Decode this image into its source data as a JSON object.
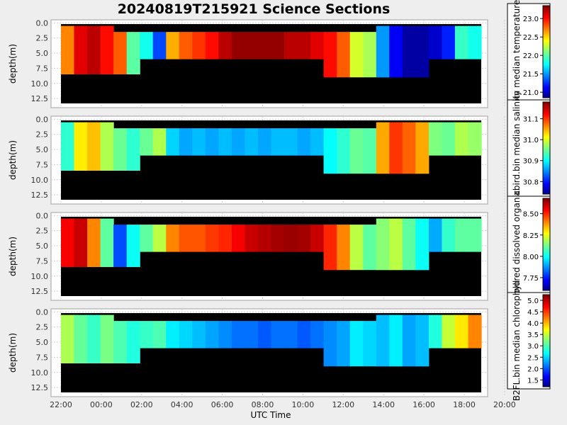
{
  "figure": {
    "title": "20240819T215921 Science Sections",
    "xlabel": "UTC Time",
    "ylabel": "depth(m)",
    "background": "#eeeeee",
    "no_data_color": "#000000"
  },
  "chart_data": [
    {
      "type": "heatmap",
      "variable": "temperature",
      "colorbar_label": "bin median temperature",
      "ylabel": "depth(m)",
      "x_tick_labels": [
        "22:00",
        "00:00",
        "02:00",
        "04:00",
        "06:00",
        "08:00",
        "10:00",
        "12:00",
        "14:00",
        "16:00",
        "18:00",
        "20:00"
      ],
      "y_tick_labels": [
        "0.0",
        "2.5",
        "5.0",
        "7.5",
        "10.0",
        "12.5"
      ],
      "y_range": [
        -0.5,
        14.0
      ],
      "colorbar_ticks": [
        "21.0",
        "21.5",
        "22.0",
        "22.5",
        "23.0"
      ],
      "colorbar_range": [
        20.85,
        23.35
      ],
      "profile_values": [
        22.7,
        23.1,
        23.2,
        23.0,
        22.8,
        22.0,
        21.8,
        21.3,
        22.6,
        22.8,
        22.9,
        23.0,
        23.2,
        23.3,
        23.3,
        23.3,
        23.3,
        23.2,
        23.2,
        23.1,
        23.0,
        22.8,
        22.3,
        22.2,
        21.5,
        21.1,
        20.9,
        20.9,
        21.0,
        21.2,
        21.9,
        21.8
      ]
    },
    {
      "type": "heatmap",
      "variable": "salinity",
      "colorbar_label": "seabird.bin median salinity",
      "ylabel": "depth(m)",
      "x_tick_labels": [
        "22:00",
        "00:00",
        "02:00",
        "04:00",
        "06:00",
        "08:00",
        "10:00",
        "12:00",
        "14:00",
        "16:00",
        "18:00",
        "20:00"
      ],
      "y_tick_labels": [
        "0.0",
        "2.5",
        "5.0",
        "7.5",
        "10.0",
        "12.5"
      ],
      "y_range": [
        -0.5,
        14.0
      ],
      "colorbar_ticks": [
        "30.8",
        "30.9",
        "31.0",
        "31.1"
      ],
      "colorbar_range": [
        30.74,
        31.18
      ],
      "profile_values": [
        30.92,
        31.02,
        31.04,
        30.98,
        30.95,
        30.92,
        30.95,
        30.98,
        30.88,
        30.86,
        30.87,
        30.86,
        30.87,
        30.86,
        30.87,
        30.86,
        30.87,
        30.87,
        30.86,
        30.87,
        30.9,
        30.92,
        30.95,
        30.94,
        31.05,
        31.1,
        31.08,
        31.05,
        30.96,
        30.95,
        30.98,
        30.97
      ]
    },
    {
      "type": "heatmap",
      "variable": "colored dissolved organic matter",
      "colorbar_label": "colored dissolved organic",
      "ylabel": "depth(m)",
      "x_tick_labels": [
        "22:00",
        "00:00",
        "02:00",
        "04:00",
        "06:00",
        "08:00",
        "10:00",
        "12:00",
        "14:00",
        "16:00",
        "18:00",
        "20:00"
      ],
      "y_tick_labels": [
        "0.0",
        "2.5",
        "5.0",
        "7.5",
        "10.0",
        "12.5"
      ],
      "y_range": [
        -0.5,
        14.0
      ],
      "colorbar_ticks": [
        "7.75",
        "8.00",
        "8.25",
        "8.50"
      ],
      "colorbar_range": [
        7.6,
        8.68
      ],
      "profile_values": [
        8.55,
        8.6,
        8.4,
        8.1,
        7.8,
        8.0,
        8.1,
        8.2,
        8.4,
        8.45,
        8.45,
        8.48,
        8.5,
        8.55,
        8.6,
        8.62,
        8.64,
        8.65,
        8.64,
        8.6,
        8.5,
        8.4,
        8.2,
        8.1,
        8.15,
        8.2,
        8.1,
        8.0,
        7.9,
        8.05,
        8.1,
        8.1
      ]
    },
    {
      "type": "heatmap",
      "variable": "chlorophyll",
      "colorbar_label": "B2FL.bin median chlorophyll",
      "ylabel": "depth(m)",
      "x_tick_labels": [
        "22:00",
        "00:00",
        "02:00",
        "04:00",
        "06:00",
        "08:00",
        "10:00",
        "12:00",
        "14:00",
        "16:00",
        "18:00",
        "20:00"
      ],
      "y_tick_labels": [
        "0.0",
        "2.5",
        "5.0",
        "7.5",
        "10.0",
        "12.5"
      ],
      "y_range": [
        -0.5,
        14.0
      ],
      "colorbar_ticks": [
        "1.5",
        "2.0",
        "2.5",
        "3.0",
        "3.5",
        "4.0",
        "4.5",
        "5.0"
      ],
      "colorbar_range": [
        1.2,
        5.25
      ],
      "profile_values": [
        3.4,
        3.1,
        2.9,
        3.2,
        3.0,
        2.8,
        2.9,
        3.0,
        2.6,
        2.5,
        2.4,
        2.3,
        2.2,
        2.1,
        2.1,
        2.0,
        2.1,
        2.1,
        2.0,
        2.1,
        2.2,
        2.3,
        2.6,
        2.5,
        2.4,
        2.6,
        2.3,
        2.4,
        2.8,
        3.5,
        3.8,
        4.2
      ]
    }
  ]
}
